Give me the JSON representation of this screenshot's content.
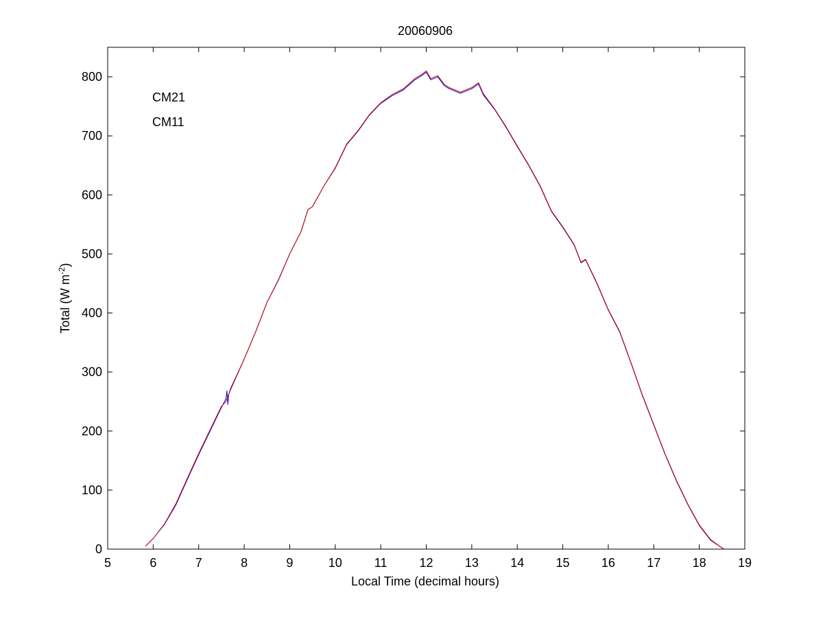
{
  "chart_data": {
    "type": "line",
    "title": "20060906",
    "xlabel": "Local Time (decimal hours)",
    "ylabel_main": "Total (W m",
    "ylabel_sup": "-2",
    "ylabel_close": ")",
    "xlim": [
      5,
      19
    ],
    "ylim": [
      0,
      850
    ],
    "xticks": [
      5,
      6,
      7,
      8,
      9,
      10,
      11,
      12,
      13,
      14,
      15,
      16,
      17,
      18,
      19
    ],
    "yticks": [
      0,
      100,
      200,
      300,
      400,
      500,
      600,
      700,
      800
    ],
    "grid": false,
    "legend_position": "top-left",
    "series": [
      {
        "name": "CM21",
        "color": "#0000cc",
        "x": [
          5.83,
          6.0,
          6.25,
          6.5,
          6.75,
          7.0,
          7.25,
          7.5,
          7.6,
          7.62,
          7.64,
          7.66,
          7.7,
          8.0,
          8.25,
          8.5,
          8.75,
          9.0,
          9.25,
          9.4,
          9.5,
          9.75,
          10.0,
          10.25,
          10.5,
          10.75,
          11.0,
          11.25,
          11.5,
          11.75,
          11.9,
          12.0,
          12.1,
          12.25,
          12.4,
          12.5,
          12.75,
          13.0,
          13.15,
          13.25,
          13.5,
          13.75,
          14.0,
          14.25,
          14.5,
          14.75,
          15.0,
          15.25,
          15.4,
          15.5,
          15.75,
          16.0,
          16.25,
          16.5,
          16.75,
          17.0,
          17.25,
          17.5,
          17.75,
          18.0,
          18.25,
          18.5,
          18.55
        ],
        "y": [
          5,
          18,
          42,
          75,
          118,
          160,
          200,
          240,
          255,
          268,
          245,
          262,
          272,
          322,
          368,
          418,
          455,
          500,
          538,
          575,
          580,
          615,
          645,
          685,
          708,
          735,
          755,
          768,
          778,
          795,
          802,
          808,
          795,
          800,
          785,
          780,
          772,
          780,
          788,
          770,
          745,
          715,
          682,
          650,
          615,
          572,
          545,
          515,
          485,
          490,
          450,
          405,
          368,
          315,
          260,
          210,
          160,
          115,
          75,
          40,
          15,
          2,
          0
        ]
      },
      {
        "name": "CM11",
        "color": "#cc0000",
        "x": [
          5.83,
          6.0,
          6.25,
          6.5,
          6.75,
          7.0,
          7.25,
          7.5,
          7.6,
          7.66,
          7.7,
          8.0,
          8.25,
          8.5,
          8.75,
          9.0,
          9.25,
          9.4,
          9.5,
          9.75,
          10.0,
          10.25,
          10.5,
          10.75,
          11.0,
          11.25,
          11.5,
          11.75,
          11.9,
          12.0,
          12.1,
          12.25,
          12.4,
          12.5,
          12.75,
          13.0,
          13.15,
          13.25,
          13.5,
          13.75,
          14.0,
          14.25,
          14.5,
          14.75,
          15.0,
          15.25,
          15.4,
          15.5,
          15.75,
          16.0,
          16.25,
          16.5,
          16.75,
          17.0,
          17.25,
          17.5,
          17.75,
          18.0,
          18.25,
          18.5,
          18.55
        ],
        "y": [
          5,
          18,
          43,
          77,
          120,
          162,
          202,
          242,
          250,
          262,
          270,
          322,
          368,
          418,
          456,
          500,
          538,
          575,
          580,
          615,
          646,
          686,
          709,
          736,
          756,
          770,
          780,
          797,
          804,
          810,
          797,
          802,
          787,
          782,
          774,
          782,
          790,
          772,
          746,
          716,
          683,
          651,
          616,
          573,
          546,
          516,
          486,
          491,
          451,
          406,
          369,
          316,
          261,
          211,
          161,
          116,
          76,
          41,
          16,
          2,
          0
        ]
      }
    ]
  }
}
